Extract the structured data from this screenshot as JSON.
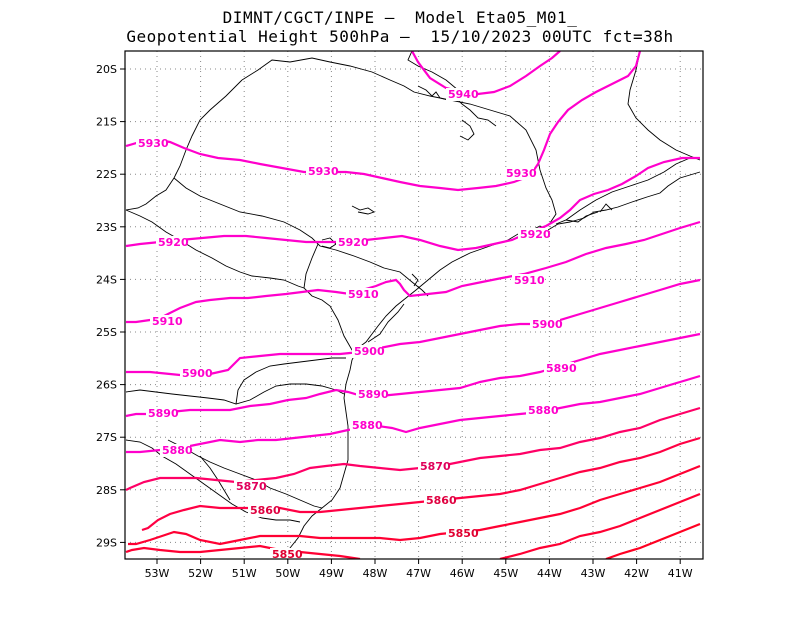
{
  "header": {
    "line1": "DIMNT/CGCT/INPE –  Model Eta05_M01_",
    "line2": "Geopotential Height 500hPa –  15/10/2023 00UTC fct=38h"
  },
  "map": {
    "lat_labels": [
      "20S",
      "21S",
      "22S",
      "23S",
      "24S",
      "25S",
      "26S",
      "27S",
      "28S",
      "29S"
    ],
    "lon_labels": [
      "53W",
      "52W",
      "51W",
      "50W",
      "49W",
      "48W",
      "47W",
      "46W",
      "45W",
      "44W",
      "43W",
      "42W",
      "41W"
    ],
    "grid": "dotted",
    "colors": {
      "contour_high": "#ff00cc",
      "contour_low": "#ff0033",
      "coast": "#000000",
      "grid": "#888888"
    }
  },
  "contours": [
    {
      "value": "5940",
      "labels": [
        "5940"
      ]
    },
    {
      "value": "5930",
      "labels": [
        "5930",
        "5930",
        "5930"
      ]
    },
    {
      "value": "5920",
      "labels": [
        "5920",
        "5920",
        "5920"
      ]
    },
    {
      "value": "5910",
      "labels": [
        "5910",
        "5910",
        "5910"
      ]
    },
    {
      "value": "5900",
      "labels": [
        "5900",
        "5900",
        "5900"
      ]
    },
    {
      "value": "5890",
      "labels": [
        "5890",
        "5890",
        "5890"
      ]
    },
    {
      "value": "5880",
      "labels": [
        "5880",
        "5880",
        "5880"
      ]
    },
    {
      "value": "5870",
      "labels": [
        "5870",
        "5870"
      ]
    },
    {
      "value": "5860",
      "labels": [
        "5860",
        "5860"
      ]
    },
    {
      "value": "5850",
      "labels": [
        "5850",
        "5850"
      ]
    }
  ]
}
